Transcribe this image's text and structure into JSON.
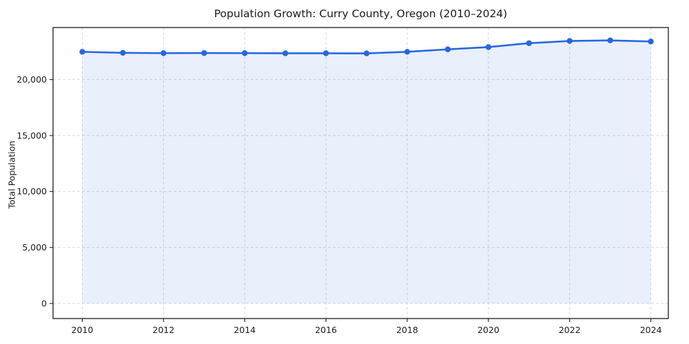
{
  "figure": {
    "title": "Population Growth: Curry County, Oregon (2010–2024)",
    "ylabel": "Total Population"
  },
  "chart_data": {
    "type": "area",
    "title": "Population Growth: Curry County, Oregon (2010–2024)",
    "xlabel": "",
    "ylabel": "Total Population",
    "x": [
      2010,
      2011,
      2012,
      2013,
      2014,
      2015,
      2016,
      2017,
      2018,
      2019,
      2020,
      2021,
      2022,
      2023,
      2024
    ],
    "values": [
      22480,
      22390,
      22360,
      22370,
      22360,
      22350,
      22350,
      22340,
      22480,
      22700,
      22900,
      23250,
      23450,
      23500,
      23400
    ],
    "xlim": [
      2009.28,
      2024.43
    ],
    "ylim": [
      -1350,
      24650
    ],
    "xticks": [
      2010,
      2012,
      2014,
      2016,
      2018,
      2020,
      2022,
      2024
    ],
    "xtick_labels": [
      "2010",
      "2012",
      "2014",
      "2016",
      "2018",
      "2020",
      "2022",
      "2024"
    ],
    "yticks": [
      0,
      5000,
      10000,
      15000,
      20000
    ],
    "ytick_labels": [
      "0",
      "5,000",
      "10,000",
      "15,000",
      "20,000"
    ],
    "grid": true,
    "grid_style": "dashed",
    "legend": false,
    "fill_baseline": 0,
    "colors": {
      "line": "#2767e0",
      "marker": "#2767e0",
      "fill": "#2767e0",
      "fill_opacity": 0.1,
      "grid": "#d7dae0",
      "spine": "#1a1a1a",
      "text": "#1a1a1a"
    }
  }
}
